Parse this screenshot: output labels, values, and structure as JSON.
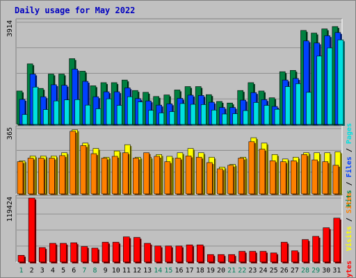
{
  "chart_data": {
    "type": "bar",
    "title": "Daily usage for May 2022",
    "categories": [
      "1",
      "2",
      "3",
      "4",
      "5",
      "6",
      "7",
      "8",
      "9",
      "10",
      "11",
      "12",
      "13",
      "14",
      "15",
      "16",
      "17",
      "18",
      "19",
      "20",
      "21",
      "22",
      "23",
      "24",
      "25",
      "26",
      "27",
      "28",
      "29",
      "30",
      "31"
    ],
    "weekend_days": [
      "1",
      "7",
      "8",
      "14",
      "15",
      "21",
      "22",
      "28",
      "29"
    ],
    "panels": [
      {
        "name": "hits_files_pages",
        "max_label": "3914",
        "ylim": [
          0,
          3914
        ],
        "legend": [
          {
            "text": "Pages",
            "color": "#00e0e0"
          },
          {
            "text": "Files",
            "color": "#0040ff"
          },
          {
            "text": "Hits",
            "color": "#008040"
          }
        ],
        "series": [
          {
            "name": "Hits",
            "color": "#008040",
            "values": [
              1280,
              2320,
              1380,
              1930,
              1930,
              2520,
              2040,
              1480,
              1600,
              1600,
              1700,
              1300,
              1230,
              1070,
              1130,
              1320,
              1450,
              1450,
              1140,
              880,
              820,
              1300,
              1600,
              1280,
              1020,
              2020,
              2070,
              3600,
              3500,
              3660,
              3750
            ]
          },
          {
            "name": "Files",
            "color": "#0040ff",
            "values": [
              960,
              1930,
              1060,
              1520,
              1500,
              2120,
              1650,
              1060,
              1250,
              1250,
              1400,
              990,
              900,
              740,
              790,
              1000,
              1120,
              1110,
              850,
              650,
              650,
              930,
              1220,
              950,
              690,
              1700,
              1760,
              3200,
              3120,
              3400,
              3520
            ]
          },
          {
            "name": "Pages",
            "color": "#00e0e0",
            "values": [
              380,
              1430,
              570,
              900,
              940,
              950,
              740,
              600,
              980,
              730,
              1060,
              860,
              540,
              440,
              490,
              800,
              770,
              760,
              550,
              400,
              410,
              530,
              840,
              730,
              580,
              1450,
              1560,
              1230,
              2620,
              2930,
              3240
            ]
          }
        ]
      },
      {
        "name": "visits_sites",
        "max_label": "365",
        "ylim": [
          0,
          365
        ],
        "legend": [
          {
            "text": "Sites",
            "color": "#ff8000"
          },
          {
            "text": "Visits",
            "color": "#ffff00"
          }
        ],
        "series": [
          {
            "name": "Visits",
            "color": "#ffff00",
            "values": [
              185,
              212,
              212,
              212,
              230,
              358,
              284,
              254,
              205,
              240,
              275,
              205,
              205,
              220,
              210,
              230,
              254,
              230,
              205,
              150,
              165,
              205,
              314,
              284,
              220,
              195,
              205,
              230,
              230,
              230,
              235
            ]
          },
          {
            "name": "Sites",
            "color": "#ff8000",
            "values": [
              180,
              200,
              200,
              200,
              214,
              350,
              270,
              225,
              200,
              210,
              230,
              200,
              230,
              210,
              180,
              200,
              212,
              205,
              175,
              140,
              160,
              200,
              292,
              250,
              185,
              180,
              185,
              220,
              190,
              180,
              160
            ]
          }
        ]
      },
      {
        "name": "kbytes",
        "max_label": "119424",
        "ylim": [
          0,
          119424
        ],
        "legend": [
          {
            "text": "KBytes",
            "color": "#ff0000"
          }
        ],
        "series": [
          {
            "name": "KBytes",
            "color": "#ff0000",
            "values": [
              12500,
              119424,
              27000,
              35000,
              35000,
              36000,
              29000,
              26000,
              37000,
              37000,
              47000,
              46000,
              35000,
              30000,
              30000,
              30000,
              32000,
              32000,
              14000,
              14000,
              14000,
              20000,
              20000,
              20000,
              17000,
              37000,
              21000,
              42000,
              48000,
              64000,
              82000
            ]
          }
        ]
      }
    ],
    "label_colors": {
      "weekday": "#000000",
      "weekend": "#00805c"
    }
  }
}
